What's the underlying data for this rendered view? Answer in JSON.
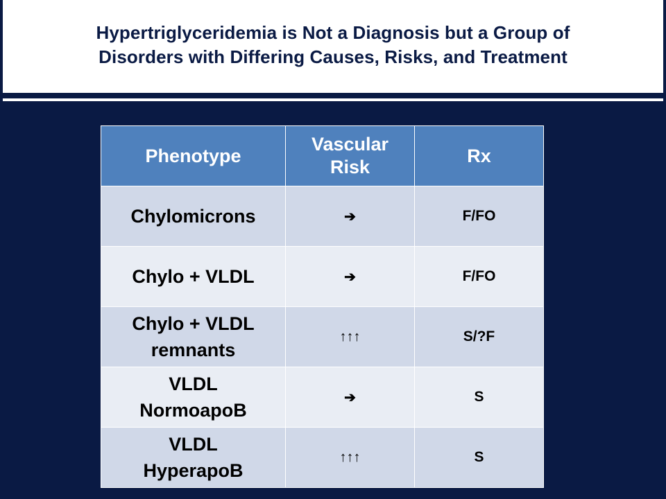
{
  "slide": {
    "title_line1": "Hypertriglyceridemia is Not a Diagnosis but a Group of",
    "title_line2": "Disorders with Differing Causes, Risks, and Treatment"
  },
  "table": {
    "headers": [
      "Phenotype",
      "Vascular\nRisk",
      "Rx"
    ],
    "rows": [
      {
        "phenotype": "Chylomicrons",
        "vascular_risk": "➔",
        "rx": "F/FO"
      },
      {
        "phenotype": "Chylo + VLDL",
        "vascular_risk": "➔",
        "rx": "F/FO"
      },
      {
        "phenotype": "Chylo + VLDL\nremnants",
        "vascular_risk": "↑↑↑",
        "rx": "S/?F"
      },
      {
        "phenotype": "VLDL\nNormoapoB",
        "vascular_risk": "➔",
        "rx": "S"
      },
      {
        "phenotype": "VLDL\nHyperapoB",
        "vascular_risk": "↑↑↑",
        "rx": "S"
      }
    ]
  },
  "colors": {
    "background_navy": "#0a1a44",
    "header_blue": "#4f81bd",
    "row_light": "#e9edf4",
    "row_medium": "#d0d8e8",
    "title_text": "#0a1a44"
  }
}
